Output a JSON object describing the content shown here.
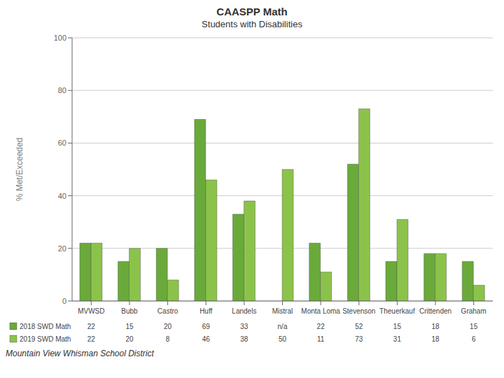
{
  "chart_data": {
    "type": "bar",
    "title": "CAASPP Math",
    "subtitle": "Students with Disabilities",
    "ylabel": "% Met/Exceeded",
    "categories": [
      "MVWSD",
      "Bubb",
      "Castro",
      "Huff",
      "Landels",
      "Mistral",
      "Monta Loma",
      "Stevenson",
      "Theuerkauf",
      "Crittenden",
      "Graham"
    ],
    "series": [
      {
        "name": "2018 SWD Math",
        "color": "#6aaa3a",
        "values": [
          22,
          15,
          20,
          69,
          33,
          null,
          22,
          52,
          15,
          18,
          15
        ],
        "value_labels": [
          "22",
          "15",
          "20",
          "69",
          "33",
          "n/a",
          "22",
          "52",
          "15",
          "18",
          "15"
        ]
      },
      {
        "name": "2019 SWD Math",
        "color": "#8bc34a",
        "values": [
          22,
          20,
          8,
          46,
          38,
          50,
          11,
          73,
          31,
          18,
          6
        ]
      }
    ],
    "ylim": [
      0,
      100
    ],
    "yticks": [
      0,
      20,
      40,
      60,
      80,
      100
    ],
    "grid": true,
    "data_labels": true,
    "annotations": [
      "Mountain View Whisman School District"
    ]
  }
}
